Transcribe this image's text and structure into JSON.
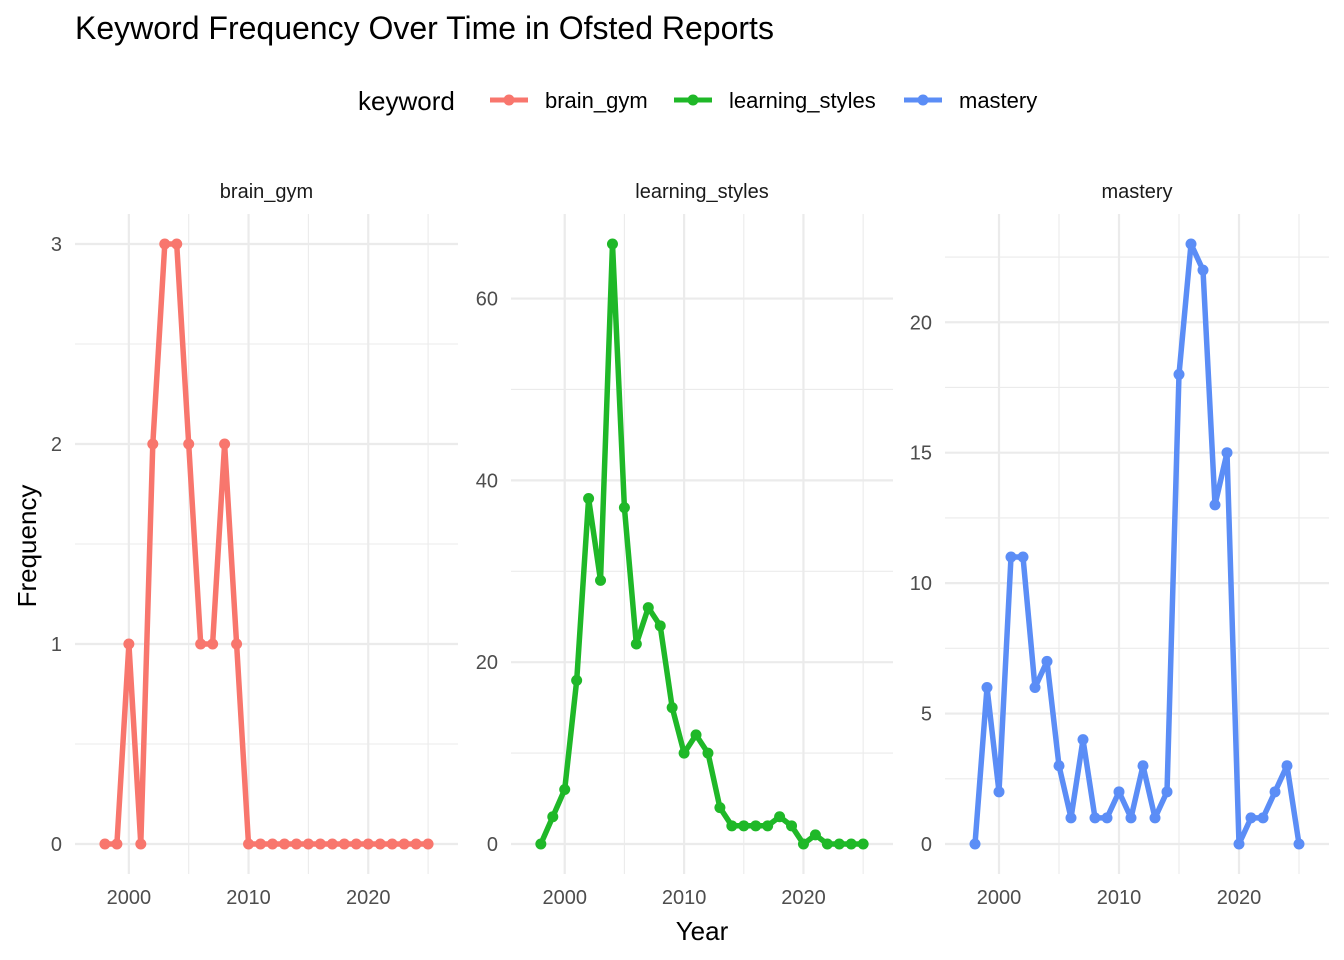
{
  "chart_data": {
    "type": "line",
    "title": "Keyword Frequency Over Time in Ofsted Reports",
    "xlabel": "Year",
    "ylabel": "Frequency",
    "legend": {
      "title": "keyword",
      "position": "top",
      "entries": [
        {
          "name": "brain_gym",
          "color": "#F8766D"
        },
        {
          "name": "learning_styles",
          "color": "#1FB828"
        },
        {
          "name": "mastery",
          "color": "#5B8DF6"
        }
      ]
    },
    "facet_scales": "free_y",
    "grid": true,
    "x": [
      1998,
      1999,
      2000,
      2001,
      2002,
      2003,
      2004,
      2005,
      2006,
      2007,
      2008,
      2009,
      2010,
      2011,
      2012,
      2013,
      2014,
      2015,
      2016,
      2017,
      2018,
      2019,
      2020,
      2021,
      2022,
      2023,
      2024,
      2025
    ],
    "xlim": [
      1995.5,
      2027.5
    ],
    "x_ticks": [
      2000,
      2010,
      2020
    ],
    "panels": [
      {
        "name": "brain_gym",
        "color": "#F8766D",
        "ylim": [
          -0.15,
          3.15
        ],
        "y_ticks": [
          0,
          1,
          2,
          3
        ],
        "y_minor": [
          0.5,
          1.5,
          2.5
        ],
        "values": [
          0,
          0,
          1,
          0,
          2,
          3,
          3,
          2,
          1,
          1,
          2,
          1,
          0,
          0,
          0,
          0,
          0,
          0,
          0,
          0,
          0,
          0,
          0,
          0,
          0,
          0,
          0,
          0
        ]
      },
      {
        "name": "learning_styles",
        "color": "#1FB828",
        "ylim": [
          -3.3,
          69.3
        ],
        "y_ticks": [
          0,
          20,
          40,
          60
        ],
        "y_minor": [
          10,
          30,
          50
        ],
        "values": [
          0,
          3,
          6,
          18,
          38,
          29,
          66,
          37,
          22,
          26,
          24,
          15,
          10,
          12,
          10,
          4,
          2,
          2,
          2,
          2,
          3,
          2,
          0,
          1,
          0,
          0,
          0,
          0
        ]
      },
      {
        "name": "mastery",
        "color": "#5B8DF6",
        "ylim": [
          -1.15,
          24.15
        ],
        "y_ticks": [
          0,
          5,
          10,
          15,
          20
        ],
        "y_minor": [
          2.5,
          7.5,
          12.5,
          17.5,
          22.5
        ],
        "values": [
          0,
          6,
          2,
          11,
          11,
          6,
          7,
          3,
          1,
          4,
          1,
          1,
          2,
          1,
          3,
          1,
          2,
          18,
          23,
          22,
          13,
          15,
          0,
          1,
          1,
          2,
          3,
          0
        ]
      }
    ]
  }
}
